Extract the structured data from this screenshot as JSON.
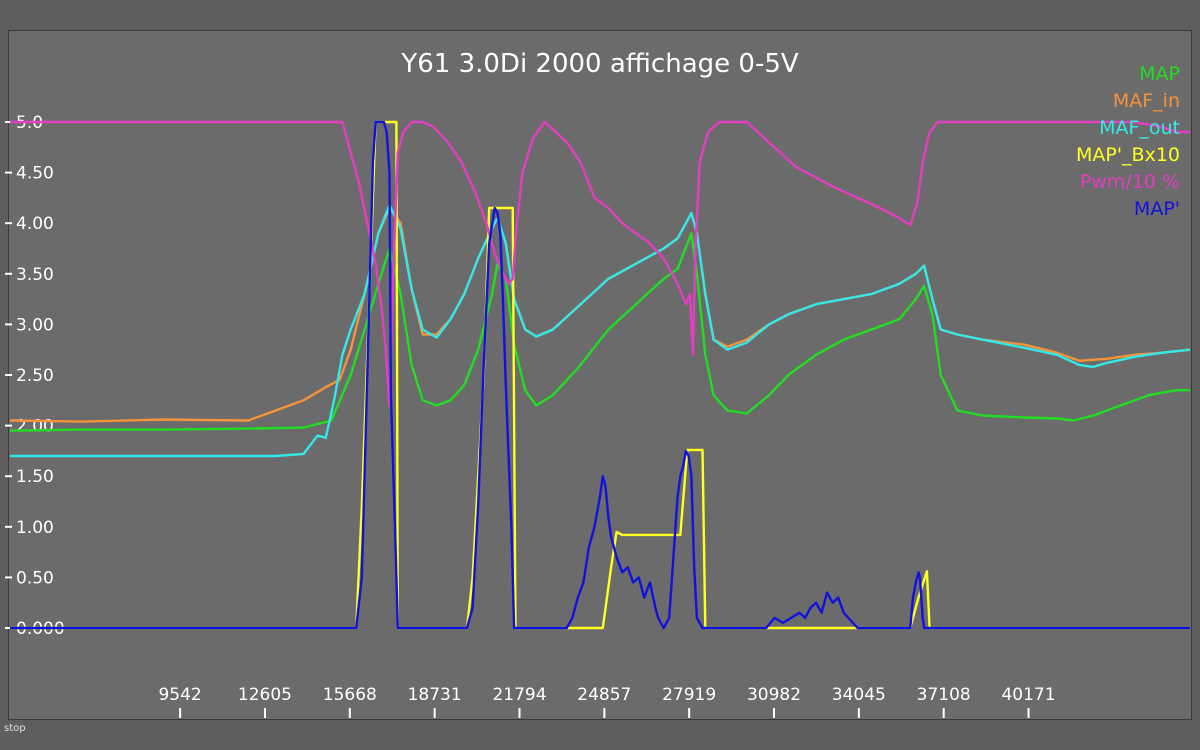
{
  "status_text": "stop",
  "chart_data": {
    "type": "line",
    "title": "Y61 3.0Di 2000 affichage 0-5V",
    "ylim": [
      0,
      5.0
    ],
    "xlim": [
      3400,
      46000
    ],
    "yticks": [
      "0.000",
      "0.50",
      "1.00",
      "1.50",
      "2.00",
      "2.50",
      "3.00",
      "3.50",
      "4.00",
      "4.50",
      "5.0"
    ],
    "ytick_values": [
      0,
      0.5,
      1.0,
      1.5,
      2.0,
      2.5,
      3.0,
      3.5,
      4.0,
      4.5,
      5.0
    ],
    "xticks": [
      "9542",
      "12605",
      "15668",
      "18731",
      "21794",
      "24857",
      "27919",
      "30982",
      "34045",
      "37108",
      "40171"
    ],
    "xtick_values": [
      9542,
      12605,
      15668,
      18731,
      21794,
      24857,
      27919,
      30982,
      34045,
      37108,
      40171
    ],
    "legend_position": "top-right",
    "series": [
      {
        "name": "MAP",
        "color": "#22dd22",
        "x": [
          3400,
          6000,
          9000,
          12000,
          14000,
          15000,
          15700,
          16200,
          16700,
          17100,
          17500,
          17900,
          18300,
          18800,
          19300,
          19800,
          20300,
          20800,
          21000,
          21300,
          21600,
          22000,
          22400,
          23000,
          24000,
          25000,
          26000,
          27000,
          27500,
          28000,
          28200,
          28500,
          28800,
          29300,
          30000,
          30800,
          31500,
          32500,
          33500,
          34500,
          35500,
          36100,
          36400,
          36700,
          37000,
          37600,
          38500,
          40000,
          41200,
          41800,
          42500,
          43500,
          44500,
          45500,
          46000
        ],
        "y": [
          1.95,
          1.96,
          1.96,
          1.97,
          1.98,
          2.05,
          2.5,
          2.95,
          3.4,
          3.75,
          3.3,
          2.6,
          2.25,
          2.2,
          2.25,
          2.4,
          2.75,
          3.3,
          3.6,
          3.45,
          2.8,
          2.35,
          2.2,
          2.3,
          2.6,
          2.95,
          3.2,
          3.45,
          3.55,
          3.9,
          3.5,
          2.7,
          2.3,
          2.15,
          2.12,
          2.3,
          2.5,
          2.7,
          2.85,
          2.95,
          3.05,
          3.25,
          3.38,
          3.1,
          2.5,
          2.15,
          2.1,
          2.08,
          2.07,
          2.05,
          2.1,
          2.2,
          2.3,
          2.35,
          2.35
        ]
      },
      {
        "name": "MAF_in",
        "color": "#f5933b",
        "x": [
          3400,
          6000,
          9000,
          12000,
          13000,
          14000,
          14800,
          15300,
          15700,
          16200,
          16700,
          17100,
          17500,
          17900,
          18300,
          18800,
          19300,
          19800,
          20300,
          20800,
          21000,
          21300,
          21600,
          22000,
          22400,
          23000,
          24000,
          25000,
          26000,
          27000,
          27500,
          28000,
          28200,
          28500,
          28800,
          29300,
          30000,
          30800,
          31500,
          32500,
          33500,
          34500,
          35500,
          36100,
          36400,
          36700,
          37000,
          37600,
          38500,
          40000,
          41200,
          42000,
          43000,
          44000,
          45000,
          46000
        ],
        "y": [
          2.05,
          2.04,
          2.06,
          2.05,
          2.15,
          2.25,
          2.38,
          2.45,
          2.75,
          3.3,
          3.9,
          4.15,
          4.0,
          3.35,
          2.9,
          2.9,
          3.05,
          3.3,
          3.65,
          3.95,
          4.05,
          3.8,
          3.25,
          2.95,
          2.88,
          2.95,
          3.2,
          3.45,
          3.6,
          3.75,
          3.85,
          4.1,
          3.9,
          3.3,
          2.85,
          2.78,
          2.85,
          3.0,
          3.1,
          3.2,
          3.25,
          3.3,
          3.4,
          3.5,
          3.58,
          3.25,
          2.95,
          2.9,
          2.85,
          2.8,
          2.72,
          2.64,
          2.66,
          2.7,
          2.72,
          2.75
        ]
      },
      {
        "name": "MAF_out",
        "color": "#33e8e8",
        "x": [
          3400,
          6000,
          9000,
          12000,
          13000,
          14000,
          14500,
          14800,
          15100,
          15400,
          15700,
          16200,
          16700,
          17100,
          17500,
          17900,
          18300,
          18800,
          19300,
          19800,
          20300,
          20800,
          21000,
          21300,
          21600,
          22000,
          22400,
          23000,
          24000,
          25000,
          26000,
          27000,
          27500,
          28000,
          28200,
          28500,
          28800,
          29300,
          30000,
          30800,
          31500,
          32500,
          33500,
          34500,
          35500,
          36100,
          36400,
          36700,
          37000,
          37600,
          38500,
          40000,
          41200,
          42000,
          42500,
          43000,
          44000,
          45000,
          46000
        ],
        "y": [
          1.7,
          1.7,
          1.7,
          1.7,
          1.7,
          1.72,
          1.9,
          1.88,
          2.25,
          2.7,
          2.95,
          3.3,
          3.9,
          4.18,
          3.95,
          3.35,
          2.95,
          2.87,
          3.05,
          3.3,
          3.65,
          3.95,
          4.05,
          3.8,
          3.25,
          2.95,
          2.88,
          2.95,
          3.2,
          3.45,
          3.6,
          3.75,
          3.85,
          4.1,
          3.9,
          3.3,
          2.85,
          2.75,
          2.82,
          3.0,
          3.1,
          3.2,
          3.25,
          3.3,
          3.4,
          3.5,
          3.58,
          3.25,
          2.95,
          2.9,
          2.85,
          2.77,
          2.7,
          2.6,
          2.58,
          2.62,
          2.68,
          2.72,
          2.75
        ]
      },
      {
        "name": "MAP'_Bx10",
        "color": "#ffff22",
        "x": [
          3400,
          15900,
          16100,
          16600,
          16700,
          17100,
          17200,
          17350,
          17400,
          19900,
          20100,
          20500,
          20700,
          21000,
          21100,
          21550,
          21650,
          24800,
          25100,
          25300,
          25500,
          27000,
          27600,
          27850,
          27900,
          28400,
          28500,
          35900,
          36200,
          36500,
          36600,
          46000
        ],
        "y": [
          0,
          0,
          1.2,
          5.0,
          5.0,
          5.0,
          5.0,
          5.0,
          0,
          0,
          0.5,
          2.5,
          4.15,
          4.15,
          4.15,
          4.15,
          0,
          0,
          0.6,
          0.95,
          0.92,
          0.92,
          0.92,
          1.76,
          1.76,
          1.76,
          0,
          0,
          0.3,
          0.56,
          0,
          0
        ]
      },
      {
        "name": "Pwm/10 %",
        "color": "#e23fc2",
        "x": [
          3400,
          10000,
          14000,
          15400,
          15700,
          16000,
          16300,
          16600,
          16800,
          16950,
          17100,
          17250,
          17400,
          17600,
          17900,
          18300,
          18700,
          19200,
          19700,
          20200,
          20600,
          20900,
          21200,
          21400,
          21550,
          21700,
          21900,
          22300,
          22700,
          23100,
          23500,
          24000,
          24500,
          25000,
          25500,
          26000,
          26500,
          27000,
          27500,
          27800,
          27950,
          28050,
          28150,
          28300,
          28600,
          29000,
          29400,
          30000,
          30600,
          31200,
          31800,
          32500,
          33200,
          34000,
          34800,
          35500,
          35900,
          36150,
          36350,
          36600,
          36900,
          37200,
          37600,
          38000,
          39000,
          41000,
          43000,
          44000,
          45000,
          45500,
          46000
        ],
        "y": [
          5.0,
          5.0,
          5.0,
          5.0,
          4.7,
          4.4,
          4.0,
          3.6,
          3.2,
          2.8,
          2.2,
          3.6,
          4.7,
          4.9,
          5.0,
          5.0,
          4.95,
          4.8,
          4.6,
          4.3,
          4.0,
          3.7,
          3.5,
          3.4,
          3.45,
          4.0,
          4.5,
          4.85,
          5.0,
          4.9,
          4.8,
          4.6,
          4.25,
          4.15,
          4.0,
          3.9,
          3.8,
          3.65,
          3.4,
          3.2,
          3.3,
          2.7,
          3.8,
          4.6,
          4.9,
          5.0,
          5.0,
          5.0,
          4.85,
          4.7,
          4.55,
          4.45,
          4.35,
          4.25,
          4.15,
          4.05,
          3.98,
          4.2,
          4.6,
          4.9,
          5.0,
          5.0,
          5.0,
          5.0,
          5.0,
          5.0,
          5.0,
          5.0,
          4.95,
          4.9,
          4.9
        ]
      },
      {
        "name": "MAP'",
        "color": "#1212dd",
        "x": [
          3400,
          15900,
          16100,
          16300,
          16500,
          16600,
          16750,
          16900,
          17000,
          17100,
          17150,
          17300,
          17400,
          19900,
          20100,
          20300,
          20500,
          20700,
          20900,
          21000,
          21100,
          21200,
          21300,
          21500,
          21600,
          23500,
          23700,
          23900,
          24100,
          24300,
          24500,
          24700,
          24800,
          24900,
          25000,
          25100,
          25300,
          25500,
          25700,
          25900,
          26100,
          26300,
          26500,
          26700,
          26800,
          26900,
          27000,
          27200,
          27400,
          27500,
          27600,
          27700,
          27800,
          27900,
          28000,
          28100,
          28200,
          28400,
          28500,
          30700,
          31000,
          31300,
          31600,
          31900,
          32100,
          32300,
          32500,
          32700,
          32900,
          33100,
          33300,
          33500,
          34000,
          35900,
          36000,
          36100,
          36200,
          36250,
          36350,
          36400,
          46000
        ],
        "y": [
          0,
          0,
          0.5,
          2.5,
          4.6,
          5.0,
          5.0,
          5.0,
          4.9,
          4.5,
          2.3,
          1.0,
          0,
          0,
          0.2,
          1.2,
          2.6,
          3.8,
          4.15,
          4.1,
          3.9,
          3.2,
          2.4,
          1.0,
          0,
          0,
          0.1,
          0.3,
          0.45,
          0.8,
          1.0,
          1.3,
          1.5,
          1.4,
          1.1,
          0.9,
          0.7,
          0.55,
          0.6,
          0.45,
          0.5,
          0.3,
          0.45,
          0.2,
          0.1,
          0.05,
          0.0,
          0.1,
          0.9,
          1.3,
          1.5,
          1.6,
          1.75,
          1.7,
          1.5,
          0.6,
          0.1,
          0,
          0,
          0,
          0.1,
          0.05,
          0.1,
          0.15,
          0.1,
          0.2,
          0.25,
          0.15,
          0.35,
          0.25,
          0.3,
          0.15,
          0,
          0,
          0.3,
          0.45,
          0.55,
          0.5,
          0.1,
          0,
          0
        ]
      }
    ]
  }
}
